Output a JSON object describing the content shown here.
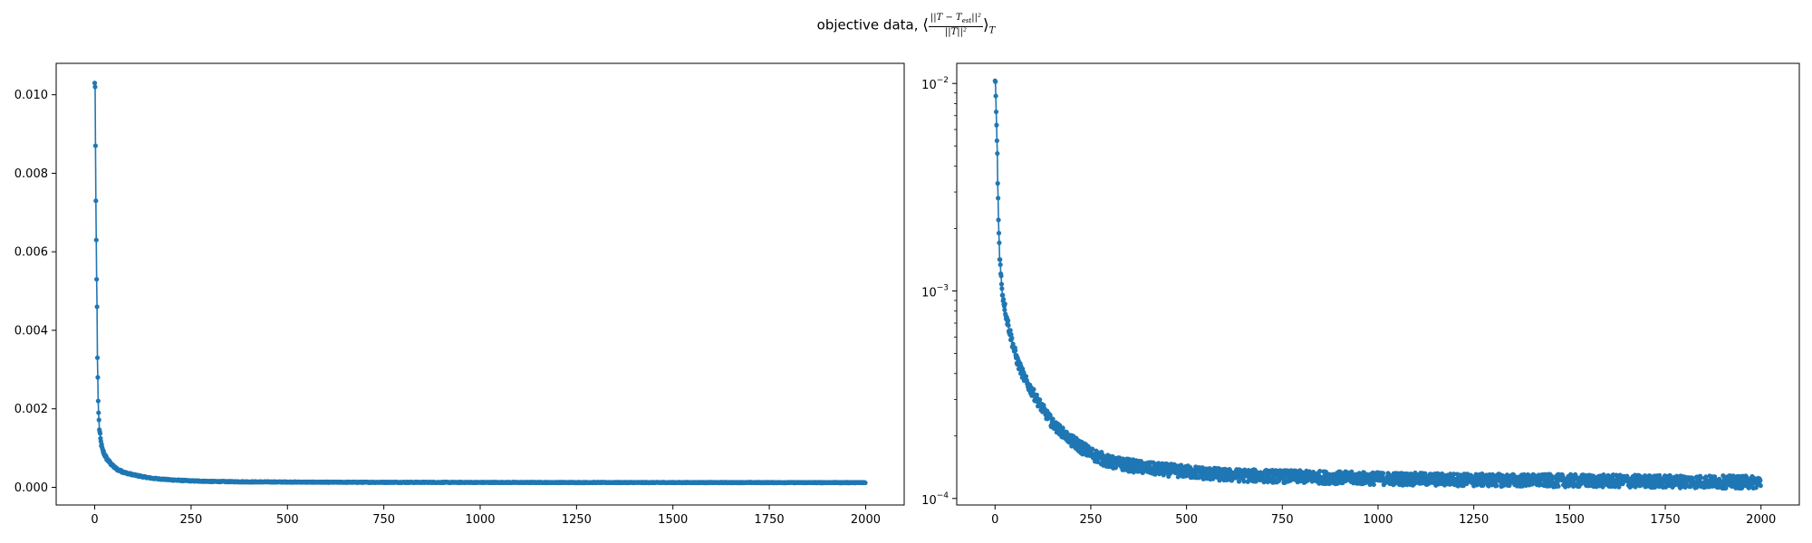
{
  "figure": {
    "suptitle_prefix": "objective data, ",
    "suptitle_numerator": "||T − T",
    "suptitle_numerator_sub": "est",
    "suptitle_numerator_tail": "||²",
    "suptitle_denominator": "||T||²",
    "suptitle_open": "⟨",
    "suptitle_close": "⟩",
    "suptitle_subscript": "T"
  },
  "colors": {
    "series": "#1f77b4",
    "axis": "#000000"
  },
  "chart_data": [
    {
      "type": "line",
      "scale": "linear",
      "title": "",
      "xlabel": "",
      "ylabel": "",
      "xlim": [
        -100,
        2100
      ],
      "ylim": [
        -0.00045,
        0.0108
      ],
      "xticks": [
        0,
        250,
        500,
        750,
        1000,
        1250,
        1500,
        1750,
        2000
      ],
      "xtick_labels": [
        "0",
        "250",
        "500",
        "750",
        "1000",
        "1250",
        "1500",
        "1750",
        "2000"
      ],
      "yticks": [
        0.0,
        0.002,
        0.004,
        0.006,
        0.008,
        0.01
      ],
      "ytick_labels": [
        "0.000",
        "0.002",
        "0.004",
        "0.006",
        "0.008",
        "0.010"
      ],
      "grid": false,
      "legend": "none",
      "marker": "dot",
      "x_range": [
        0,
        1999
      ],
      "series": [
        {
          "x": [
            0,
            1,
            2,
            3,
            4,
            5,
            6,
            7,
            8,
            9,
            10,
            12,
            14,
            16,
            18,
            20,
            25,
            30,
            40,
            50,
            60,
            80,
            100,
            125,
            150,
            200,
            250,
            300,
            400,
            500,
            600,
            750,
            1000,
            1250,
            1500,
            1750,
            1999
          ],
          "values": [
            0.0103,
            0.0102,
            0.0087,
            0.0073,
            0.0063,
            0.0053,
            0.0046,
            0.0033,
            0.0028,
            0.0022,
            0.0019,
            0.0015,
            0.0013,
            0.00115,
            0.00105,
            0.00095,
            0.00085,
            0.00075,
            0.00062,
            0.00052,
            0.00045,
            0.00037,
            0.00032,
            0.00027,
            0.00023,
            0.00019,
            0.000165,
            0.00015,
            0.00014,
            0.000135,
            0.00013,
            0.000128,
            0.000125,
            0.000123,
            0.000122,
            0.000121,
            0.00012
          ]
        }
      ]
    },
    {
      "type": "line",
      "scale": "log",
      "title": "",
      "xlabel": "",
      "ylabel": "",
      "xlim": [
        -100,
        2100
      ],
      "ylim": [
        9.3e-05,
        0.0125
      ],
      "xticks": [
        0,
        250,
        500,
        750,
        1000,
        1250,
        1500,
        1750,
        2000
      ],
      "xtick_labels": [
        "0",
        "250",
        "500",
        "750",
        "1000",
        "1250",
        "1500",
        "1750",
        "2000"
      ],
      "yticks": [
        0.0001,
        0.001,
        0.01
      ],
      "ytick_labels": [
        {
          "base": "10",
          "exp": "−4"
        },
        {
          "base": "10",
          "exp": "−3"
        },
        {
          "base": "10",
          "exp": "−2"
        }
      ],
      "grid": false,
      "legend": "none",
      "marker": "dot",
      "x_range": [
        0,
        1999
      ],
      "series": [
        {
          "x": [
            0,
            1,
            2,
            3,
            4,
            5,
            6,
            7,
            8,
            9,
            10,
            12,
            14,
            16,
            18,
            20,
            25,
            30,
            40,
            50,
            60,
            80,
            100,
            125,
            150,
            200,
            250,
            300,
            400,
            500,
            600,
            750,
            1000,
            1250,
            1500,
            1750,
            1999
          ],
          "values": [
            0.0103,
            0.0102,
            0.0087,
            0.0073,
            0.0063,
            0.0053,
            0.0046,
            0.0033,
            0.0028,
            0.0022,
            0.0019,
            0.0015,
            0.0013,
            0.00115,
            0.00105,
            0.00095,
            0.00085,
            0.00075,
            0.00062,
            0.00052,
            0.00045,
            0.00037,
            0.00032,
            0.00027,
            0.00023,
            0.00019,
            0.000165,
            0.00015,
            0.00014,
            0.000135,
            0.00013,
            0.000128,
            0.000125,
            0.000123,
            0.000122,
            0.000121,
            0.00012
          ]
        }
      ]
    }
  ]
}
